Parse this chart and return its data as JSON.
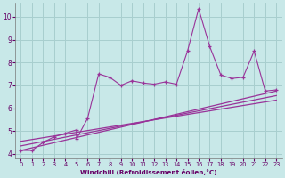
{
  "xlabel": "Windchill (Refroidissement éolien,°C)",
  "bg_color": "#c8e8e8",
  "grid_color": "#a8cece",
  "line_color": "#993399",
  "xlim": [
    -0.5,
    23.5
  ],
  "ylim": [
    3.8,
    10.6
  ],
  "xticks": [
    0,
    1,
    2,
    3,
    4,
    5,
    6,
    7,
    8,
    9,
    10,
    11,
    12,
    13,
    14,
    15,
    16,
    17,
    18,
    19,
    20,
    21,
    22,
    23
  ],
  "yticks": [
    4,
    5,
    6,
    7,
    8,
    9,
    10
  ],
  "scatter_x": [
    0,
    1,
    2,
    3,
    4,
    5,
    5,
    6,
    7,
    8,
    9,
    10,
    11,
    12,
    13,
    14,
    15,
    16,
    17,
    18,
    19,
    20,
    21,
    22,
    23
  ],
  "scatter_y": [
    4.15,
    4.15,
    4.5,
    4.75,
    4.9,
    5.05,
    4.65,
    5.55,
    7.5,
    7.35,
    7.0,
    7.2,
    7.1,
    7.05,
    7.15,
    7.05,
    8.5,
    10.35,
    8.7,
    7.45,
    7.3,
    7.35,
    8.5,
    6.75,
    6.8
  ],
  "reg_line1": {
    "x": [
      0,
      23
    ],
    "y": [
      4.15,
      6.75
    ]
  },
  "reg_line2": {
    "x": [
      0,
      23
    ],
    "y": [
      4.35,
      6.55
    ]
  },
  "reg_line3": {
    "x": [
      0,
      23
    ],
    "y": [
      4.55,
      6.35
    ]
  },
  "extra_line_x": [
    0,
    5,
    5.5,
    6,
    7
  ],
  "extra_line_y": [
    4.15,
    5.0,
    5.5,
    5.85,
    7.5
  ]
}
